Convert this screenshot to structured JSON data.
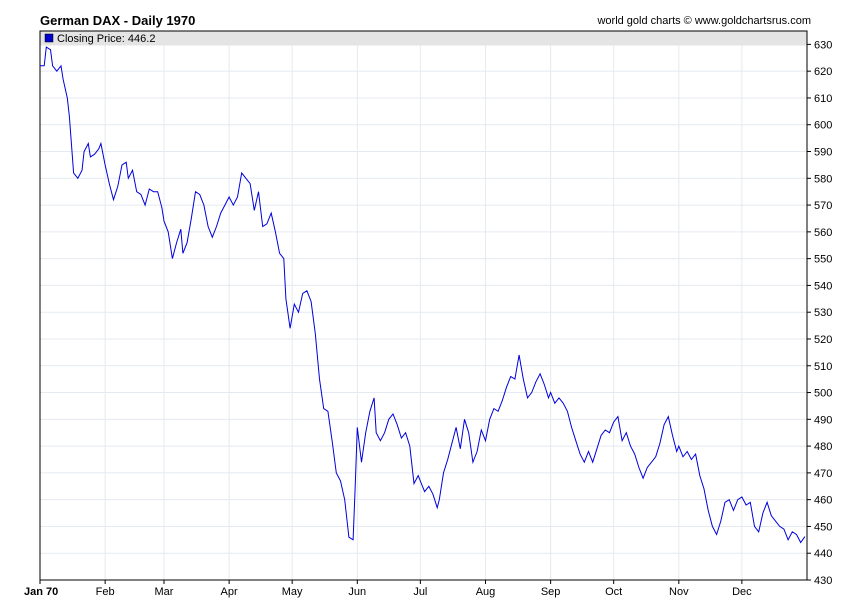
{
  "header": {
    "title": "German DAX - Daily 1970",
    "credit": "world gold charts © www.goldchartsrus.com"
  },
  "legend": {
    "label": "Closing Price: 446.2",
    "color": "#0000cc"
  },
  "colors": {
    "line": "#0000dd",
    "grid": "#e4eaf0",
    "legend_bg": "#e4e4e4",
    "axis": "#000000"
  },
  "chart_data": {
    "type": "line",
    "title": "German DAX - Daily 1970",
    "series_name": "Closing Price",
    "last_value": 446.2,
    "ylim": [
      430,
      635
    ],
    "y_ticks": [
      430,
      440,
      450,
      460,
      470,
      480,
      490,
      500,
      510,
      520,
      530,
      540,
      550,
      560,
      570,
      580,
      590,
      600,
      610,
      620,
      630
    ],
    "xlim": [
      0,
      365
    ],
    "x_ticks": [
      {
        "label": "Jan 70",
        "day": 0
      },
      {
        "label": "Feb",
        "day": 31
      },
      {
        "label": "Mar",
        "day": 59
      },
      {
        "label": "Apr",
        "day": 90
      },
      {
        "label": "May",
        "day": 120
      },
      {
        "label": "Jun",
        "day": 151
      },
      {
        "label": "Jul",
        "day": 181
      },
      {
        "label": "Aug",
        "day": 212
      },
      {
        "label": "Sep",
        "day": 243
      },
      {
        "label": "Oct",
        "day": 273
      },
      {
        "label": "Nov",
        "day": 304
      },
      {
        "label": "Dec",
        "day": 334
      }
    ],
    "points": [
      [
        0,
        622
      ],
      [
        2,
        622
      ],
      [
        3,
        629
      ],
      [
        5,
        628
      ],
      [
        6,
        622
      ],
      [
        8,
        620
      ],
      [
        10,
        622
      ],
      [
        11,
        617
      ],
      [
        13,
        610
      ],
      [
        14,
        603
      ],
      [
        16,
        582
      ],
      [
        18,
        580
      ],
      [
        20,
        583
      ],
      [
        21,
        590
      ],
      [
        23,
        593
      ],
      [
        24,
        588
      ],
      [
        26,
        589
      ],
      [
        28,
        591
      ],
      [
        29,
        593
      ],
      [
        31,
        585
      ],
      [
        33,
        578
      ],
      [
        35,
        572
      ],
      [
        37,
        577
      ],
      [
        39,
        585
      ],
      [
        41,
        586
      ],
      [
        42,
        580
      ],
      [
        44,
        583
      ],
      [
        46,
        575
      ],
      [
        48,
        574
      ],
      [
        50,
        570
      ],
      [
        52,
        576
      ],
      [
        54,
        575
      ],
      [
        56,
        575
      ],
      [
        58,
        569
      ],
      [
        59,
        564
      ],
      [
        61,
        560
      ],
      [
        63,
        550
      ],
      [
        65,
        556
      ],
      [
        67,
        561
      ],
      [
        68,
        552
      ],
      [
        70,
        556
      ],
      [
        72,
        565
      ],
      [
        74,
        575
      ],
      [
        76,
        574
      ],
      [
        78,
        570
      ],
      [
        80,
        562
      ],
      [
        82,
        558
      ],
      [
        84,
        562
      ],
      [
        86,
        567
      ],
      [
        88,
        570
      ],
      [
        90,
        573
      ],
      [
        92,
        570
      ],
      [
        94,
        573
      ],
      [
        96,
        582
      ],
      [
        98,
        580
      ],
      [
        100,
        578
      ],
      [
        102,
        568
      ],
      [
        104,
        575
      ],
      [
        106,
        562
      ],
      [
        108,
        563
      ],
      [
        110,
        567
      ],
      [
        112,
        560
      ],
      [
        114,
        552
      ],
      [
        116,
        550
      ],
      [
        117,
        535
      ],
      [
        119,
        524
      ],
      [
        121,
        533
      ],
      [
        123,
        530
      ],
      [
        125,
        537
      ],
      [
        127,
        538
      ],
      [
        129,
        534
      ],
      [
        131,
        522
      ],
      [
        133,
        505
      ],
      [
        135,
        494
      ],
      [
        137,
        493
      ],
      [
        139,
        482
      ],
      [
        141,
        470
      ],
      [
        143,
        467
      ],
      [
        145,
        460
      ],
      [
        147,
        446
      ],
      [
        149,
        445
      ],
      [
        150,
        465
      ],
      [
        151,
        487
      ],
      [
        153,
        474
      ],
      [
        155,
        485
      ],
      [
        157,
        493
      ],
      [
        159,
        498
      ],
      [
        160,
        485
      ],
      [
        162,
        482
      ],
      [
        164,
        485
      ],
      [
        166,
        490
      ],
      [
        168,
        492
      ],
      [
        170,
        488
      ],
      [
        172,
        483
      ],
      [
        174,
        485
      ],
      [
        176,
        480
      ],
      [
        178,
        466
      ],
      [
        180,
        469
      ],
      [
        181,
        467
      ],
      [
        183,
        463
      ],
      [
        185,
        465
      ],
      [
        187,
        462
      ],
      [
        189,
        457
      ],
      [
        190,
        460
      ],
      [
        192,
        470
      ],
      [
        194,
        475
      ],
      [
        196,
        481
      ],
      [
        198,
        487
      ],
      [
        200,
        479
      ],
      [
        202,
        490
      ],
      [
        204,
        485
      ],
      [
        206,
        474
      ],
      [
        208,
        478
      ],
      [
        210,
        486
      ],
      [
        212,
        482
      ],
      [
        214,
        490
      ],
      [
        216,
        494
      ],
      [
        218,
        493
      ],
      [
        220,
        497
      ],
      [
        222,
        502
      ],
      [
        224,
        506
      ],
      [
        226,
        505
      ],
      [
        228,
        514
      ],
      [
        230,
        505
      ],
      [
        232,
        498
      ],
      [
        234,
        500
      ],
      [
        236,
        504
      ],
      [
        238,
        507
      ],
      [
        240,
        503
      ],
      [
        242,
        498
      ],
      [
        243,
        500
      ],
      [
        245,
        496
      ],
      [
        247,
        498
      ],
      [
        249,
        496
      ],
      [
        251,
        493
      ],
      [
        253,
        487
      ],
      [
        255,
        482
      ],
      [
        257,
        477
      ],
      [
        259,
        474
      ],
      [
        261,
        478
      ],
      [
        263,
        474
      ],
      [
        265,
        479
      ],
      [
        267,
        484
      ],
      [
        269,
        486
      ],
      [
        271,
        485
      ],
      [
        273,
        489
      ],
      [
        275,
        491
      ],
      [
        277,
        482
      ],
      [
        279,
        485
      ],
      [
        281,
        480
      ],
      [
        283,
        477
      ],
      [
        285,
        472
      ],
      [
        287,
        468
      ],
      [
        289,
        472
      ],
      [
        291,
        474
      ],
      [
        293,
        476
      ],
      [
        295,
        481
      ],
      [
        297,
        488
      ],
      [
        299,
        491
      ],
      [
        301,
        484
      ],
      [
        303,
        478
      ],
      [
        304,
        480
      ],
      [
        306,
        476
      ],
      [
        308,
        478
      ],
      [
        310,
        475
      ],
      [
        312,
        477
      ],
      [
        314,
        469
      ],
      [
        316,
        464
      ],
      [
        318,
        456
      ],
      [
        320,
        450
      ],
      [
        322,
        447
      ],
      [
        324,
        452
      ],
      [
        326,
        459
      ],
      [
        328,
        460
      ],
      [
        330,
        456
      ],
      [
        332,
        460
      ],
      [
        334,
        461
      ],
      [
        336,
        458
      ],
      [
        338,
        459
      ],
      [
        340,
        450
      ],
      [
        342,
        448
      ],
      [
        344,
        455
      ],
      [
        346,
        459
      ],
      [
        348,
        454
      ],
      [
        350,
        452
      ],
      [
        352,
        450
      ],
      [
        354,
        449
      ],
      [
        356,
        445
      ],
      [
        358,
        448
      ],
      [
        360,
        447
      ],
      [
        362,
        444
      ],
      [
        364,
        446.2
      ]
    ]
  }
}
